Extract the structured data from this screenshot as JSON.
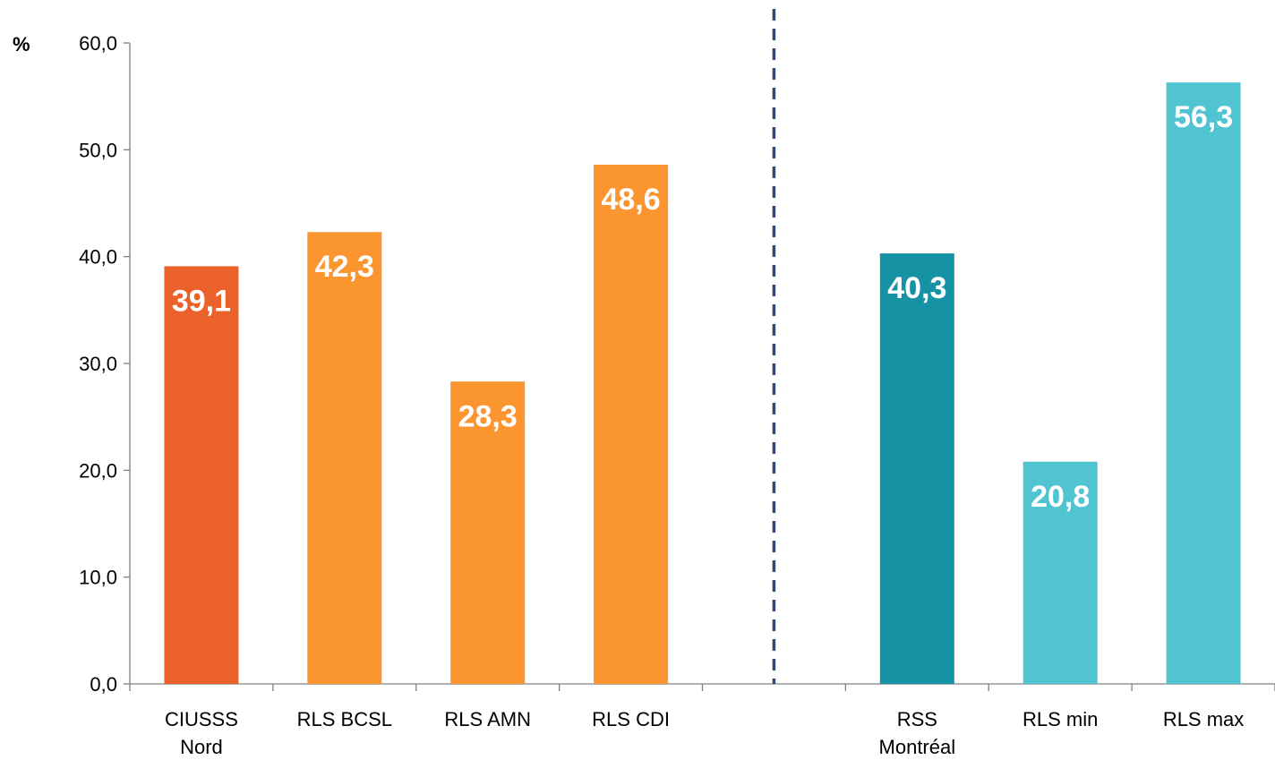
{
  "chart_data": {
    "type": "bar",
    "unit_label": "%",
    "categories": [
      [
        "CIUSSS",
        "Nord"
      ],
      [
        "RLS BCSL"
      ],
      [
        "RLS AMN"
      ],
      [
        "RLS CDI"
      ],
      [],
      [
        "RSS",
        "Montréal"
      ],
      [
        "RLS min"
      ],
      [
        "RLS max"
      ]
    ],
    "values": [
      39.1,
      42.3,
      28.3,
      48.6,
      null,
      40.3,
      20.8,
      56.3
    ],
    "value_labels": [
      "39,1",
      "42,3",
      "28,3",
      "48,6",
      "",
      "40,3",
      "20,8",
      "56,3"
    ],
    "colors": [
      "#ea6129",
      "#fb9530",
      "#fb9530",
      "#fb9530",
      "",
      "#1592a3",
      "#50c5d1",
      "#50c5d1"
    ],
    "ylim": [
      0,
      60
    ],
    "yticks": [
      0,
      10,
      20,
      30,
      40,
      50,
      60
    ],
    "ytick_labels": [
      "0,0",
      "10,0",
      "20,0",
      "30,0",
      "40,0",
      "50,0",
      "60,0"
    ],
    "separator": "dashed vertical line between the CIUSSS group and the Montréal group",
    "separator_color": "#2f4b7c",
    "grid": false,
    "legend": "none"
  }
}
